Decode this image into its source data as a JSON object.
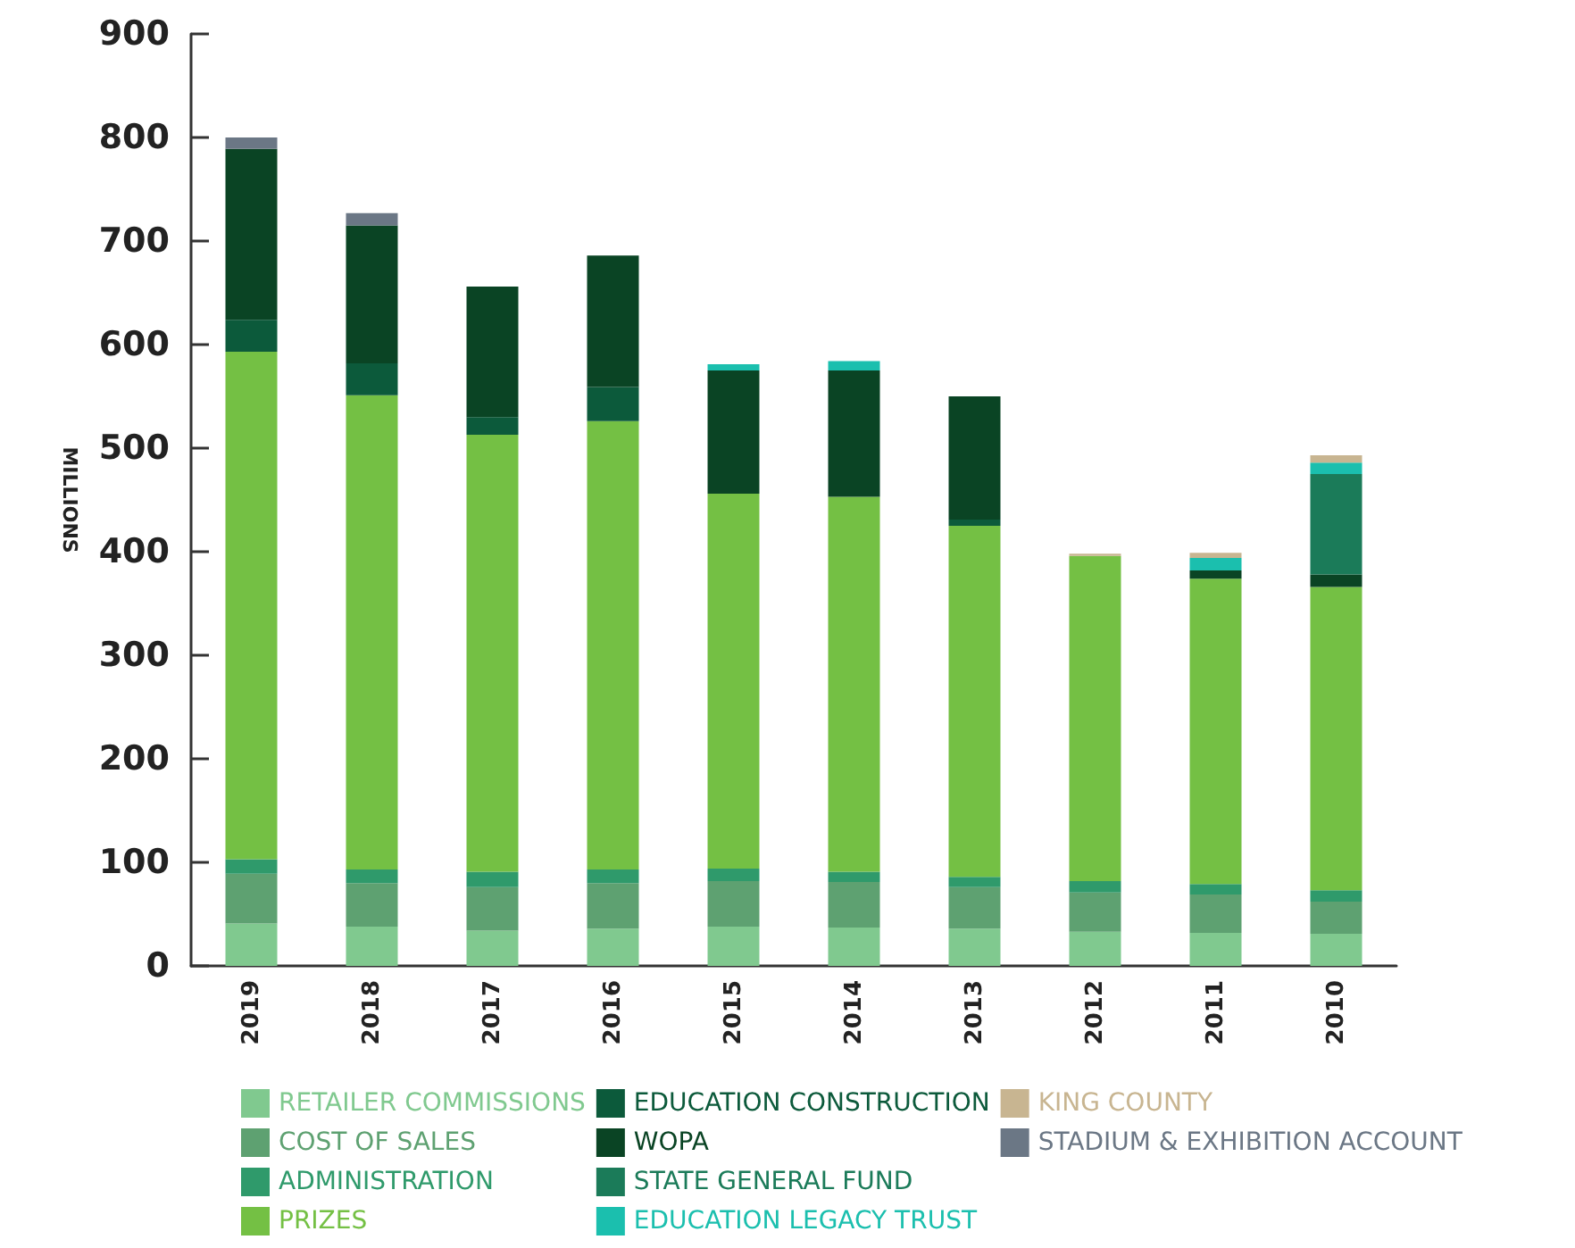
{
  "chart_data": {
    "type": "bar",
    "stacked": true,
    "ylabel": "MILLIONS",
    "categories": [
      "2019",
      "2018",
      "2017",
      "2016",
      "2015",
      "2014",
      "2013",
      "2012",
      "2011",
      "2010"
    ],
    "ylim": [
      0,
      900
    ],
    "yticks": [
      0,
      100,
      200,
      300,
      400,
      500,
      600,
      700,
      800,
      900
    ],
    "grid": false,
    "legend": "bottom",
    "series": [
      {
        "name": "RETAILER COMMISSIONS",
        "color": "#80c98f",
        "values": [
          41,
          38,
          34,
          36,
          38,
          37,
          36,
          33,
          32,
          31
        ]
      },
      {
        "name": "COST OF SALES",
        "color": "#5ea171",
        "values": [
          48,
          42,
          42,
          44,
          44,
          44,
          40,
          38,
          37,
          31
        ]
      },
      {
        "name": "ADMINISTRATION",
        "color": "#2f9a6b",
        "values": [
          14,
          13,
          15,
          13,
          12,
          10,
          10,
          11,
          10,
          11
        ]
      },
      {
        "name": "PRIZES",
        "color": "#74c044",
        "values": [
          490,
          458,
          422,
          433,
          362,
          362,
          339,
          314,
          295,
          293
        ]
      },
      {
        "name": "EDUCATION CONSTRUCTION",
        "color": "#0c5a3b",
        "values": [
          31,
          31,
          17,
          33,
          null,
          null,
          6,
          null,
          null,
          null
        ]
      },
      {
        "name": "WOPA",
        "color": "#0a4424",
        "values": [
          165,
          133,
          126,
          127,
          119,
          122,
          119,
          null,
          8,
          12
        ]
      },
      {
        "name": "STATE GENERAL FUND",
        "color": "#1b7b59",
        "values": [
          null,
          null,
          null,
          null,
          null,
          null,
          null,
          null,
          null,
          97
        ]
      },
      {
        "name": "EDUCATION LEGACY TRUST",
        "color": "#1bbfae",
        "values": [
          null,
          null,
          null,
          null,
          6,
          9,
          null,
          null,
          12,
          11
        ]
      },
      {
        "name": "KING COUNTY",
        "color": "#c8b591",
        "values": [
          null,
          null,
          null,
          null,
          null,
          null,
          null,
          2,
          5,
          7
        ]
      },
      {
        "name": "STADIUM & EXHIBITION ACCOUNT",
        "color": "#6b7785",
        "values": [
          11,
          12,
          null,
          null,
          null,
          null,
          null,
          null,
          null,
          null
        ]
      }
    ]
  }
}
